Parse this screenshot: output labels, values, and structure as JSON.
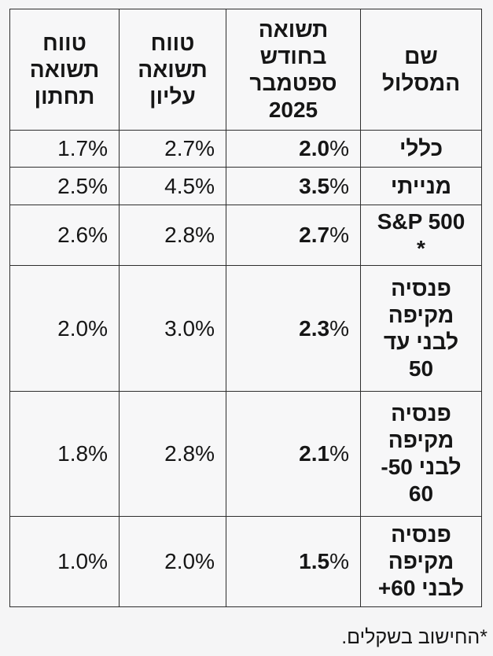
{
  "page": {
    "background": "#f5f5f6",
    "border_color": "#2e2e2e",
    "text_color": "#161616"
  },
  "table": {
    "headers": {
      "name": "שם\nהמסלול",
      "september": "תשואה\nבחודש\nספטמבר\n2025",
      "upper": "טווח\nתשואה\nעליון",
      "lower": "טווח\nתשואה\nתחתון"
    },
    "percent_sign": "%",
    "rows": [
      {
        "name": "כללי",
        "sep_num": "2.0",
        "upper": "2.7%",
        "lower": "1.7%"
      },
      {
        "name": "מנייתי",
        "sep_num": "3.5",
        "upper": "4.5%",
        "lower": "2.5%"
      },
      {
        "name": "S&P 500\n*",
        "sep_num": "2.7",
        "upper": "2.8%",
        "lower": "2.6%"
      },
      {
        "name": "פנסיה\nמקיפה\nלבני עד\n50",
        "sep_num": "2.3",
        "upper": "3.0%",
        "lower": "2.0%"
      },
      {
        "name": "פנסיה\nמקיפה\nלבני 50-\n60",
        "sep_num": "2.1",
        "upper": "2.8%",
        "lower": "1.8%"
      },
      {
        "name": "פנסיה\nמקיפה\nלבני 60+",
        "sep_num": "1.5",
        "upper": "2.0%",
        "lower": "1.0%"
      }
    ],
    "footnote": "*החישוב בשקלים."
  },
  "chart_data": {
    "type": "table",
    "columns": [
      "שם המסלול",
      "תשואה בחודש ספטמבר 2025",
      "טווח תשואה עליון",
      "טווח תשואה תחתון"
    ],
    "rows": [
      [
        "כללי",
        "2.0%",
        "2.7%",
        "1.7%"
      ],
      [
        "מנייתי",
        "3.5%",
        "4.5%",
        "2.5%"
      ],
      [
        "S&P 500 *",
        "2.7%",
        "2.8%",
        "2.6%"
      ],
      [
        "פנסיה מקיפה לבני עד 50",
        "2.3%",
        "3.0%",
        "2.0%"
      ],
      [
        "פנסיה מקיפה לבני 50-60",
        "2.1%",
        "2.8%",
        "1.8%"
      ],
      [
        "פנסיה מקיפה לבני 60+",
        "1.5%",
        "2.0%",
        "1.0%"
      ]
    ],
    "footnote": "*החישוב בשקלים.",
    "notes": "RTL table; track name and September value bold; percent sign of September value regular weight; numeric cells right-aligned; name cells centered."
  }
}
